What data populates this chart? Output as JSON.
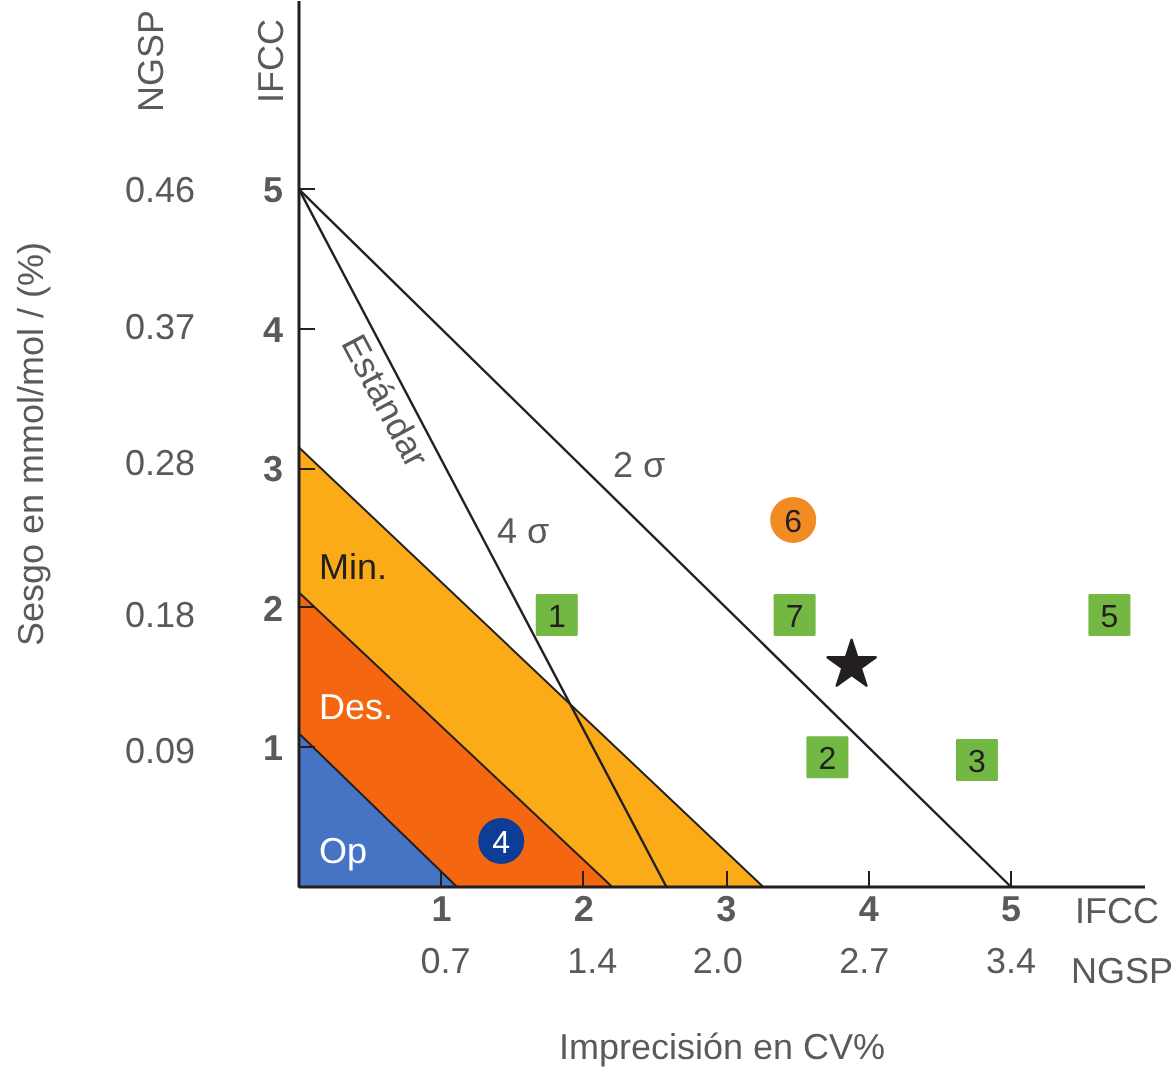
{
  "chart_data": {
    "type": "scatter",
    "xlabel": "Imprecisión en CV%",
    "y2label": "Sesgo en mmol/mol / (%)",
    "xlim": [
      0,
      5.94
    ],
    "ylim": [
      0,
      6.35
    ],
    "xticks": [
      1,
      2,
      3,
      4,
      5
    ],
    "yticks": [
      1,
      2,
      3,
      4,
      5
    ],
    "x2lim": [
      0,
      4.04
    ],
    "x2ticks": [
      0.7,
      1.4,
      {
        "value": 2.0,
        "label": "2.0"
      },
      2.7,
      3.4
    ],
    "y2lim": [
      0,
      0.584
    ],
    "y2ticks": [
      0.09,
      0.18,
      0.28,
      0.37,
      0.46
    ],
    "grid": false,
    "series": [
      {
        "type": "area",
        "x": [
          0,
          3.26
        ],
        "values": [
          3.15,
          0
        ],
        "color": "#fbab18"
      },
      {
        "type": "area",
        "x": [
          0,
          2.2
        ],
        "values": [
          2.11,
          0
        ],
        "color": "#f4660f"
      },
      {
        "type": "area",
        "x": [
          0,
          1.11
        ],
        "values": [
          1.1,
          0
        ],
        "color": "#4674c4"
      },
      {
        "type": "line",
        "x": [
          0,
          5
        ],
        "values": [
          5,
          0
        ],
        "color": "#231f20"
      },
      {
        "type": "line",
        "x": [
          0,
          2.58
        ],
        "values": [
          5,
          0
        ],
        "color": "#231f20"
      },
      {
        "marker": "square",
        "x": [
          1.81,
          3.48,
          5.69,
          3.71,
          4.76
        ],
        "values": [
          1.95,
          1.95,
          1.95,
          0.93,
          0.91
        ],
        "color": "#72b843"
      },
      {
        "marker": "circle",
        "x": [
          3.47
        ],
        "values": [
          2.63
        ],
        "color": "#f18c25"
      },
      {
        "marker": "circle",
        "x": [
          1.42
        ],
        "values": [
          0.33
        ],
        "color": "#0d3d96"
      },
      {
        "marker": "star",
        "x": [
          3.88
        ],
        "values": [
          1.59
        ],
        "color": "#231f20"
      }
    ],
    "annotations": [
      "Estándar",
      "2 σ",
      "4 σ",
      "Min.",
      "Des.",
      "Op",
      "IFCC",
      "NGSP",
      "NGSP",
      "IFCC",
      {
        "text": "1",
        "x": 1.81,
        "y": 1.95
      },
      {
        "text": "7",
        "x": 3.48,
        "y": 1.95
      },
      {
        "text": "5",
        "x": 5.69,
        "y": 1.95
      },
      {
        "text": "2",
        "x": 3.71,
        "y": 0.93
      },
      {
        "text": "3",
        "x": 4.76,
        "y": 0.91
      },
      {
        "text": "6",
        "x": 3.47,
        "y": 2.63
      },
      {
        "text": "4",
        "x": 1.42,
        "y": 0.33
      }
    ]
  }
}
